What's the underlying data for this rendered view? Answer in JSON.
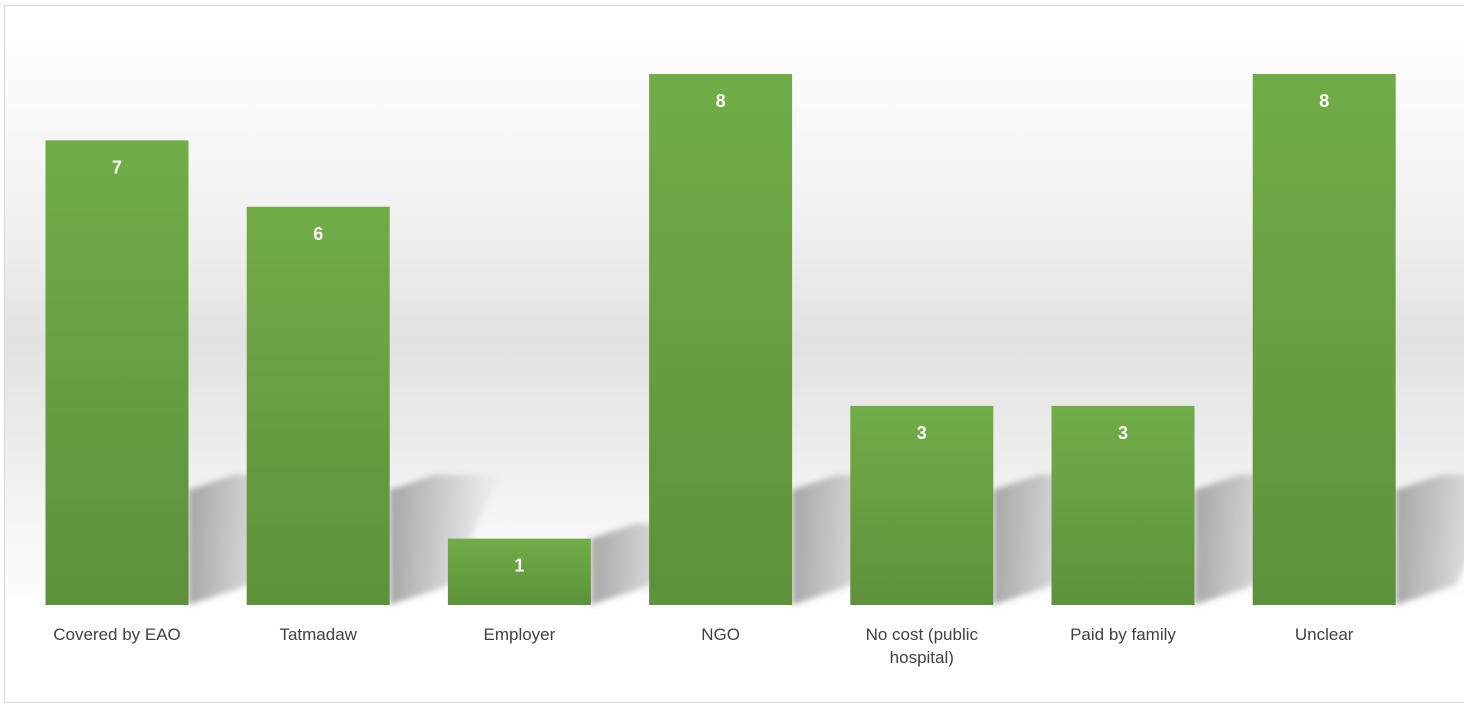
{
  "chart_data": {
    "type": "bar",
    "categories": [
      "Covered by EAO",
      "Tatmadaw",
      "Employer",
      "NGO",
      "No cost (public hospital)",
      "Paid by family",
      "Unclear"
    ],
    "category_lines": [
      [
        "Covered by EAO"
      ],
      [
        "Tatmadaw"
      ],
      [
        "Employer"
      ],
      [
        "NGO"
      ],
      [
        "No cost (public",
        "hospital)"
      ],
      [
        "Paid by family"
      ],
      [
        "Unclear"
      ]
    ],
    "values": [
      7,
      6,
      1,
      8,
      3,
      3,
      8
    ],
    "title": "",
    "xlabel": "",
    "ylabel": "",
    "ylim": [
      0,
      8
    ],
    "grid": false,
    "legend": "none",
    "data_labels": true,
    "style": "3d-shadow"
  },
  "colors": {
    "bar_top": "#70ad47",
    "bar_bottom": "#5e913b",
    "shadow": "#9a9a9a",
    "label_text": "#404040",
    "value_text": "#ffffff"
  }
}
